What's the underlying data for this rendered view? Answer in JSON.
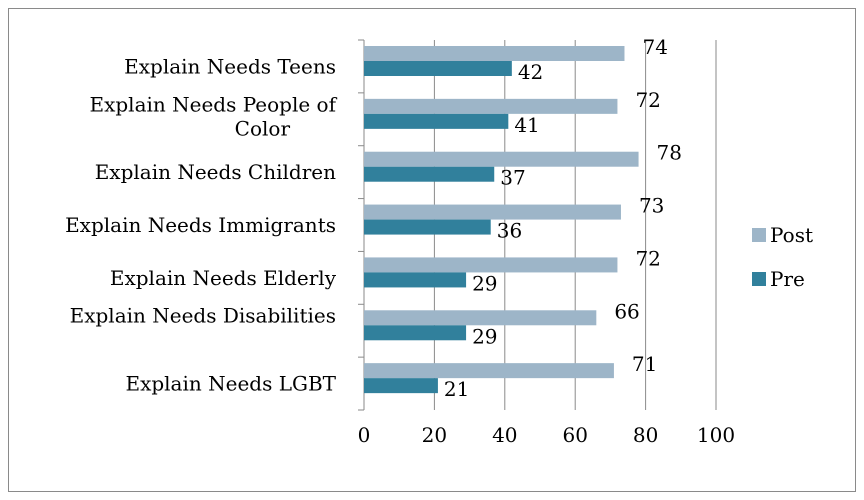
{
  "chart_data": {
    "type": "bar",
    "orientation": "horizontal",
    "categories": [
      "Explain Needs Teens",
      "Explain Needs People of Color",
      "Explain Needs Children",
      "Explain Needs Immigrants",
      "Explain Needs Elderly",
      "Explain Needs Disabilities",
      "Explain Needs LGBT"
    ],
    "series": [
      {
        "name": "Post",
        "values": [
          74,
          72,
          78,
          73,
          72,
          66,
          71
        ],
        "color": "#9db5c8"
      },
      {
        "name": "Pre",
        "values": [
          42,
          41,
          37,
          36,
          29,
          29,
          21
        ],
        "color": "#31809c"
      }
    ],
    "xlim": [
      0,
      100
    ],
    "xticks": [
      "0",
      "20",
      "40",
      "60",
      "80",
      "100"
    ],
    "grid": "vertical",
    "legend": "right",
    "title": "",
    "xlabel": "",
    "ylabel": ""
  }
}
